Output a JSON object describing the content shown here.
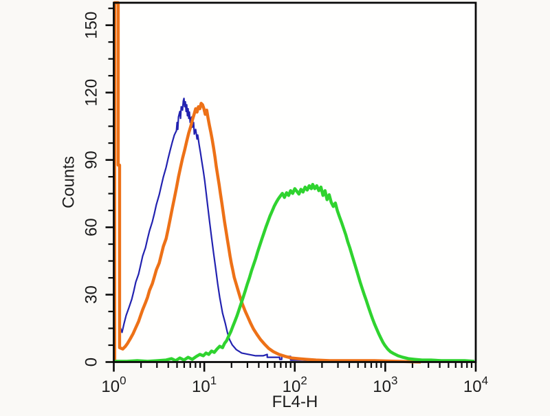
{
  "chart_data": {
    "type": "line",
    "subtype": "flow-cytometry-histogram-overlay",
    "xlabel": "FL4-H",
    "ylabel": "Counts",
    "x_scale": "log10",
    "xlim": [
      1,
      10000
    ],
    "ylim": [
      0,
      160
    ],
    "grid": false,
    "legend": "none",
    "background_color": "#faf9f6",
    "plot_background_color": "#fffffe",
    "axis_color": "#0a0a0a",
    "x_ticks": {
      "base": "10",
      "exponents": [
        0,
        1,
        2,
        3,
        4
      ]
    },
    "x_minor_mantissas": [
      2,
      3,
      4,
      5,
      6,
      7,
      8,
      9
    ],
    "y_ticks": [
      0,
      30,
      60,
      90,
      120,
      150
    ],
    "y_minor_step": 7.5,
    "series": [
      {
        "id": "blue-histogram",
        "color": "#2222b0",
        "stroke_width": 2.2,
        "peak": {
          "x": 6,
          "counts": 117
        },
        "points_log10x_counts": [
          [
            0.061,
            16.6
          ],
          [
            0.091,
            13.2
          ],
          [
            0.114,
            17.2
          ],
          [
            0.137,
            20.8
          ],
          [
            0.167,
            24.2
          ],
          [
            0.198,
            27.9
          ],
          [
            0.221,
            31.6
          ],
          [
            0.243,
            35.6
          ],
          [
            0.274,
            39.2
          ],
          [
            0.297,
            43.2
          ],
          [
            0.319,
            47.2
          ],
          [
            0.35,
            50.9
          ],
          [
            0.373,
            54.9
          ],
          [
            0.395,
            58.5
          ],
          [
            0.426,
            62.5
          ],
          [
            0.449,
            66.2
          ],
          [
            0.471,
            70.2
          ],
          [
            0.502,
            74.5
          ],
          [
            0.525,
            78.5
          ],
          [
            0.548,
            82.4
          ],
          [
            0.578,
            86.7
          ],
          [
            0.601,
            90.7
          ],
          [
            0.624,
            94.4
          ],
          [
            0.646,
            97.8
          ],
          [
            0.669,
            101.1
          ],
          [
            0.692,
            103.0
          ],
          [
            0.7,
            106.7
          ],
          [
            0.707,
            103.6
          ],
          [
            0.715,
            109.1
          ],
          [
            0.73,
            111.6
          ],
          [
            0.738,
            108.5
          ],
          [
            0.745,
            113.7
          ],
          [
            0.76,
            112.2
          ],
          [
            0.768,
            116.2
          ],
          [
            0.776,
            117.4
          ],
          [
            0.783,
            113.7
          ],
          [
            0.791,
            115.9
          ],
          [
            0.799,
            111.6
          ],
          [
            0.806,
            114.6
          ],
          [
            0.814,
            109.7
          ],
          [
            0.821,
            112.8
          ],
          [
            0.829,
            108.5
          ],
          [
            0.836,
            111.3
          ],
          [
            0.844,
            106.7
          ],
          [
            0.859,
            109.1
          ],
          [
            0.867,
            104.5
          ],
          [
            0.882,
            106.7
          ],
          [
            0.89,
            101.5
          ],
          [
            0.905,
            103.6
          ],
          [
            0.92,
            99.3
          ],
          [
            0.928,
            101.1
          ],
          [
            0.943,
            96.9
          ],
          [
            0.958,
            93.2
          ],
          [
            0.973,
            89.2
          ],
          [
            0.989,
            85.2
          ],
          [
            1.004,
            80.9
          ],
          [
            1.019,
            76.0
          ],
          [
            1.034,
            70.8
          ],
          [
            1.057,
            63.1
          ],
          [
            1.08,
            55.5
          ],
          [
            1.103,
            48.4
          ],
          [
            1.126,
            41.7
          ],
          [
            1.148,
            34.9
          ],
          [
            1.171,
            28.8
          ],
          [
            1.202,
            21.8
          ],
          [
            1.232,
            17.2
          ],
          [
            1.255,
            13.2
          ],
          [
            1.278,
            10.1
          ],
          [
            1.308,
            7.7
          ],
          [
            1.354,
            5.5
          ],
          [
            1.414,
            4.0
          ],
          [
            1.49,
            3.4
          ],
          [
            1.567,
            2.8
          ],
          [
            1.65,
            2.8
          ],
          [
            1.696,
            3.4
          ],
          [
            1.696,
            2.1
          ],
          [
            1.833,
            2.1
          ],
          [
            1.833,
            1.2
          ],
          [
            1.856,
            1.2
          ],
          [
            1.856,
            2.5
          ],
          [
            1.954,
            2.5
          ],
          [
            1.954,
            0.9
          ],
          [
            2.084,
            0.9
          ],
          [
            2.198,
            0.6
          ],
          [
            2.297,
            0.6
          ],
          [
            2.357,
            0.3
          ]
        ]
      },
      {
        "id": "orange-histogram",
        "color": "#ed7117",
        "stroke_width": 4.5,
        "peak": {
          "x": 9.3,
          "counts": 115
        },
        "points_log10x_counts": [
          [
            0.01,
            0
          ],
          [
            0.01,
            160
          ],
          [
            0.049,
            160
          ],
          [
            0.049,
            87.7
          ],
          [
            0.064,
            87.7
          ],
          [
            0.064,
            6.4
          ],
          [
            0.099,
            5.8
          ],
          [
            0.129,
            7.0
          ],
          [
            0.152,
            8.3
          ],
          [
            0.183,
            10.4
          ],
          [
            0.213,
            12.6
          ],
          [
            0.243,
            15.3
          ],
          [
            0.274,
            18.1
          ],
          [
            0.297,
            20.8
          ],
          [
            0.319,
            23.3
          ],
          [
            0.35,
            26.4
          ],
          [
            0.373,
            28.8
          ],
          [
            0.395,
            31.9
          ],
          [
            0.426,
            34.9
          ],
          [
            0.449,
            38.0
          ],
          [
            0.471,
            41.1
          ],
          [
            0.502,
            44.1
          ],
          [
            0.525,
            47.8
          ],
          [
            0.548,
            51.5
          ],
          [
            0.578,
            54.9
          ],
          [
            0.601,
            59.2
          ],
          [
            0.624,
            63.8
          ],
          [
            0.646,
            68.3
          ],
          [
            0.669,
            72.9
          ],
          [
            0.692,
            77.5
          ],
          [
            0.715,
            82.4
          ],
          [
            0.738,
            86.7
          ],
          [
            0.76,
            90.7
          ],
          [
            0.783,
            94.4
          ],
          [
            0.806,
            98.4
          ],
          [
            0.829,
            102.1
          ],
          [
            0.852,
            105.1
          ],
          [
            0.874,
            108.5
          ],
          [
            0.89,
            110.6
          ],
          [
            0.905,
            112.8
          ],
          [
            0.92,
            111.3
          ],
          [
            0.935,
            113.7
          ],
          [
            0.951,
            112.8
          ],
          [
            0.966,
            115.2
          ],
          [
            0.981,
            114.6
          ],
          [
            0.996,
            112.8
          ],
          [
            1.011,
            110.3
          ],
          [
            1.027,
            112.2
          ],
          [
            1.042,
            108.5
          ],
          [
            1.057,
            105.4
          ],
          [
            1.072,
            102.4
          ],
          [
            1.088,
            99.0
          ],
          [
            1.103,
            95.3
          ],
          [
            1.118,
            91.3
          ],
          [
            1.133,
            87.0
          ],
          [
            1.148,
            83.1
          ],
          [
            1.164,
            79.1
          ],
          [
            1.179,
            74.8
          ],
          [
            1.194,
            70.8
          ],
          [
            1.209,
            66.8
          ],
          [
            1.224,
            62.5
          ],
          [
            1.24,
            58.5
          ],
          [
            1.255,
            54.6
          ],
          [
            1.27,
            50.9
          ],
          [
            1.285,
            47.2
          ],
          [
            1.3,
            43.8
          ],
          [
            1.316,
            40.8
          ],
          [
            1.331,
            37.7
          ],
          [
            1.354,
            34.6
          ],
          [
            1.376,
            31.6
          ],
          [
            1.399,
            28.5
          ],
          [
            1.422,
            25.7
          ],
          [
            1.452,
            22.7
          ],
          [
            1.483,
            19.9
          ],
          [
            1.513,
            17.2
          ],
          [
            1.544,
            14.7
          ],
          [
            1.582,
            12.3
          ],
          [
            1.62,
            10.1
          ],
          [
            1.665,
            8.0
          ],
          [
            1.711,
            6.1
          ],
          [
            1.764,
            4.6
          ],
          [
            1.825,
            3.4
          ],
          [
            1.894,
            2.5
          ],
          [
            1.962,
            1.8
          ],
          [
            2.038,
            1.5
          ],
          [
            2.129,
            1.2
          ],
          [
            2.236,
            0.9
          ],
          [
            2.388,
            0.6
          ],
          [
            2.616,
            0.6
          ],
          [
            2.882,
            0.6
          ],
          [
            3.148,
            0.3
          ],
          [
            3.392,
            0
          ]
        ]
      },
      {
        "id": "green-histogram",
        "color": "#2fd32f",
        "stroke_width": 4.5,
        "peak": {
          "x": 158,
          "counts": 79
        },
        "points_log10x_counts": [
          [
            0.008,
            0.3
          ],
          [
            0.144,
            0.3
          ],
          [
            0.259,
            0.6
          ],
          [
            0.373,
            0.3
          ],
          [
            0.487,
            0.6
          ],
          [
            0.578,
            0.9
          ],
          [
            0.639,
            1.5
          ],
          [
            0.684,
            0.6
          ],
          [
            0.73,
            1.8
          ],
          [
            0.776,
            0.9
          ],
          [
            0.821,
            2.1
          ],
          [
            0.867,
            1.2
          ],
          [
            0.913,
            2.5
          ],
          [
            0.951,
            3.4
          ],
          [
            0.989,
            2.8
          ],
          [
            1.019,
            4.0
          ],
          [
            1.049,
            3.4
          ],
          [
            1.08,
            4.9
          ],
          [
            1.11,
            4.3
          ],
          [
            1.141,
            5.8
          ],
          [
            1.171,
            7.0
          ],
          [
            1.202,
            6.4
          ],
          [
            1.224,
            8.3
          ],
          [
            1.247,
            9.5
          ],
          [
            1.27,
            11.6
          ],
          [
            1.293,
            13.5
          ],
          [
            1.316,
            15.9
          ],
          [
            1.338,
            18.1
          ],
          [
            1.361,
            20.5
          ],
          [
            1.384,
            23.3
          ],
          [
            1.407,
            26.1
          ],
          [
            1.43,
            28.8
          ],
          [
            1.452,
            31.6
          ],
          [
            1.475,
            34.6
          ],
          [
            1.498,
            37.4
          ],
          [
            1.521,
            40.5
          ],
          [
            1.544,
            43.2
          ],
          [
            1.567,
            46.0
          ],
          [
            1.589,
            49.0
          ],
          [
            1.612,
            51.8
          ],
          [
            1.635,
            54.6
          ],
          [
            1.658,
            57.3
          ],
          [
            1.681,
            60.1
          ],
          [
            1.703,
            62.5
          ],
          [
            1.726,
            65.0
          ],
          [
            1.749,
            67.1
          ],
          [
            1.772,
            69.3
          ],
          [
            1.795,
            71.1
          ],
          [
            1.817,
            72.6
          ],
          [
            1.84,
            73.9
          ],
          [
            1.863,
            75.1
          ],
          [
            1.886,
            73.3
          ],
          [
            1.909,
            75.4
          ],
          [
            1.932,
            74.2
          ],
          [
            1.954,
            76.3
          ],
          [
            1.977,
            75.1
          ],
          [
            2.0,
            77.2
          ],
          [
            2.023,
            76.0
          ],
          [
            2.046,
            74.8
          ],
          [
            2.068,
            76.9
          ],
          [
            2.091,
            75.7
          ],
          [
            2.114,
            77.9
          ],
          [
            2.137,
            76.6
          ],
          [
            2.16,
            78.5
          ],
          [
            2.183,
            77.2
          ],
          [
            2.198,
            79.1
          ],
          [
            2.221,
            77.2
          ],
          [
            2.243,
            78.5
          ],
          [
            2.266,
            76.3
          ],
          [
            2.289,
            77.9
          ],
          [
            2.312,
            74.2
          ],
          [
            2.335,
            76.3
          ],
          [
            2.357,
            72.3
          ],
          [
            2.38,
            74.5
          ],
          [
            2.403,
            71.1
          ],
          [
            2.426,
            69.3
          ],
          [
            2.449,
            70.8
          ],
          [
            2.471,
            67.4
          ],
          [
            2.494,
            64.7
          ],
          [
            2.517,
            62.2
          ],
          [
            2.54,
            59.5
          ],
          [
            2.563,
            56.7
          ],
          [
            2.585,
            53.6
          ],
          [
            2.608,
            50.9
          ],
          [
            2.631,
            47.8
          ],
          [
            2.654,
            44.8
          ],
          [
            2.677,
            41.7
          ],
          [
            2.7,
            38.6
          ],
          [
            2.722,
            35.6
          ],
          [
            2.745,
            32.8
          ],
          [
            2.768,
            30.0
          ],
          [
            2.791,
            27.3
          ],
          [
            2.814,
            24.5
          ],
          [
            2.837,
            21.8
          ],
          [
            2.859,
            19.3
          ],
          [
            2.882,
            16.9
          ],
          [
            2.905,
            14.7
          ],
          [
            2.928,
            12.6
          ],
          [
            2.951,
            10.7
          ],
          [
            2.973,
            8.9
          ],
          [
            2.996,
            7.4
          ],
          [
            3.027,
            5.8
          ],
          [
            3.057,
            4.6
          ],
          [
            3.095,
            3.7
          ],
          [
            3.141,
            2.8
          ],
          [
            3.194,
            2.1
          ],
          [
            3.255,
            1.5
          ],
          [
            3.323,
            1.2
          ],
          [
            3.407,
            0.9
          ],
          [
            3.506,
            0.9
          ],
          [
            3.62,
            0.6
          ],
          [
            3.757,
            0.6
          ],
          [
            3.878,
            0.6
          ],
          [
            3.985,
            0.3
          ]
        ]
      }
    ]
  }
}
